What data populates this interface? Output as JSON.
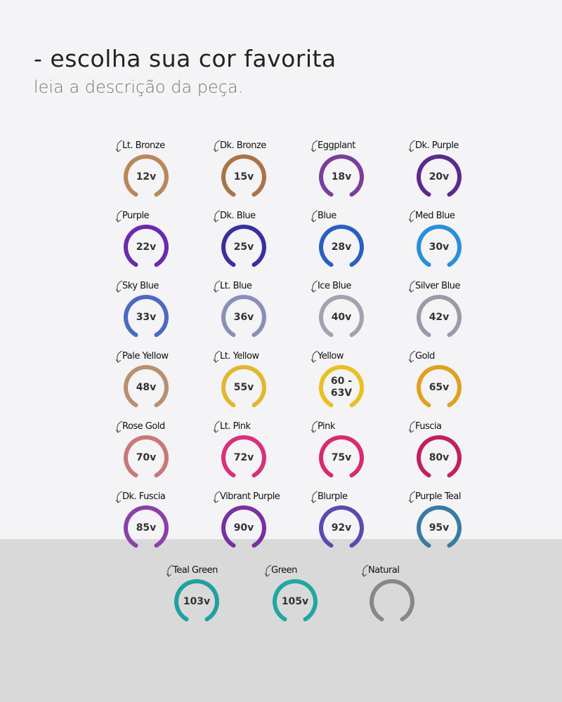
{
  "header": {
    "title": "- escolha sua cor favorita",
    "subtitle": "leia a descrição da peça."
  },
  "swatches": [
    {
      "name": "Lt. Bronze",
      "voltage": "12v",
      "color": "#b9875a"
    },
    {
      "name": "Dk. Bronze",
      "voltage": "15v",
      "color": "#a87448"
    },
    {
      "name": "Eggplant",
      "voltage": "18v",
      "color": "#7a3f9a"
    },
    {
      "name": "Dk. Purple",
      "voltage": "20v",
      "color": "#5a2a8e"
    },
    {
      "name": "Purple",
      "voltage": "22v",
      "color": "#6a2ab0"
    },
    {
      "name": "Dk. Blue",
      "voltage": "25v",
      "color": "#3a2fa0"
    },
    {
      "name": "Blue",
      "voltage": "28v",
      "color": "#2a5fc0"
    },
    {
      "name": "Med Blue",
      "voltage": "30v",
      "color": "#2a8fd8"
    },
    {
      "name": "Sky Blue",
      "voltage": "33v",
      "color": "#4a6ac0"
    },
    {
      "name": "Lt. Blue",
      "voltage": "36v",
      "color": "#8a8fb8"
    },
    {
      "name": "Ice Blue",
      "voltage": "40v",
      "color": "#a0a4b0"
    },
    {
      "name": "Silver Blue",
      "voltage": "42v",
      "color": "#9a9aa8"
    },
    {
      "name": "Pale Yellow",
      "voltage": "48v",
      "color": "#b89070"
    },
    {
      "name": "Lt. Yellow",
      "voltage": "55v",
      "color": "#e0b830"
    },
    {
      "name": "Yellow",
      "voltage": "60 - 63V",
      "color": "#e8c020"
    },
    {
      "name": "Gold",
      "voltage": "65v",
      "color": "#e0a020"
    },
    {
      "name": "Rose Gold",
      "voltage": "70v",
      "color": "#c87878"
    },
    {
      "name": "Lt. Pink",
      "voltage": "72v",
      "color": "#d8307a"
    },
    {
      "name": "Pink",
      "voltage": "75v",
      "color": "#d82a70"
    },
    {
      "name": "Fuscia",
      "voltage": "80v",
      "color": "#c02060"
    },
    {
      "name": "Dk. Fuscia",
      "voltage": "85v",
      "color": "#8a40a8"
    },
    {
      "name": "Vibrant Purple",
      "voltage": "90v",
      "color": "#7a30a0"
    },
    {
      "name": "Blurple",
      "voltage": "92v",
      "color": "#5a4ab0"
    },
    {
      "name": "Purple Teal",
      "voltage": "95v",
      "color": "#3a7aa0"
    },
    {
      "name": "Teal Green",
      "voltage": "103v",
      "color": "#20a0a0"
    },
    {
      "name": "Green",
      "voltage": "105v",
      "color": "#20a8a0"
    },
    {
      "name": "Natural",
      "color": "#888888"
    }
  ]
}
